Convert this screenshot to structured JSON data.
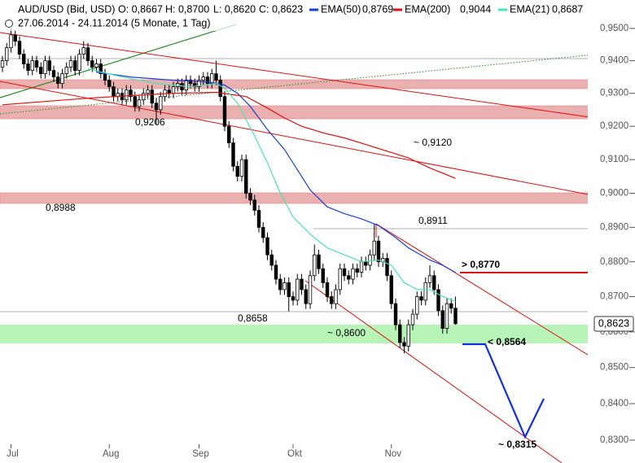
{
  "header": {
    "symbol": "AUD/USD (Bid, USD)",
    "quote": [
      "O: 0,8667",
      "H: 0,8700",
      "L: 0,8620",
      "C: 0,8623"
    ],
    "range": "27.06.2014 - 24.11.2014 (5 Monate, 1 Tag)"
  },
  "chart_data": {
    "type": "candlestick",
    "log_scale": true,
    "grid": false,
    "up_color": "#ffffff",
    "down_color": "#000000",
    "categories": [
      null,
      null,
      "Jul",
      null,
      null,
      null,
      null,
      null,
      null,
      null,
      null,
      null,
      null,
      null,
      null,
      null,
      null,
      null,
      null,
      null,
      null,
      null,
      null,
      null,
      null,
      "Aug",
      null,
      null,
      null,
      null,
      null,
      null,
      null,
      null,
      null,
      null,
      null,
      null,
      null,
      null,
      null,
      null,
      null,
      null,
      null,
      null,
      "Sep",
      null,
      null,
      null,
      null,
      null,
      null,
      null,
      null,
      null,
      null,
      null,
      null,
      null,
      null,
      null,
      null,
      null,
      null,
      null,
      null,
      null,
      "Okt",
      null,
      null,
      null,
      null,
      null,
      null,
      null,
      null,
      null,
      null,
      null,
      null,
      null,
      null,
      null,
      null,
      null,
      null,
      null,
      null,
      null,
      null,
      "Nov",
      null,
      null,
      null,
      null,
      null,
      null,
      null,
      null,
      null,
      null,
      null,
      null,
      null,
      null,
      null
    ],
    "open": [
      0.938,
      0.94,
      0.944,
      0.948,
      0.946,
      0.942,
      0.939,
      0.937,
      0.94,
      0.938,
      0.936,
      0.94,
      0.937,
      0.935,
      0.933,
      0.936,
      0.938,
      0.94,
      0.937,
      0.942,
      0.944,
      0.94,
      0.938,
      0.939,
      0.936,
      0.934,
      0.932,
      0.929,
      0.93,
      0.928,
      0.931,
      0.929,
      0.926,
      0.928,
      0.93,
      0.931,
      0.927,
      0.925,
      0.929,
      0.931,
      0.93,
      0.932,
      0.933,
      0.931,
      0.934,
      0.933,
      0.932,
      0.934,
      0.935,
      0.933,
      0.936,
      0.934,
      0.929,
      0.92,
      0.915,
      0.908,
      0.905,
      0.91,
      0.9,
      0.898,
      0.895,
      0.89,
      0.887,
      0.882,
      0.879,
      0.875,
      0.872,
      0.874,
      0.87,
      0.869,
      0.875,
      0.872,
      0.868,
      0.876,
      0.882,
      0.878,
      0.874,
      0.87,
      0.868,
      0.872,
      0.878,
      0.876,
      0.875,
      0.878,
      0.877,
      0.88,
      0.879,
      0.882,
      0.886,
      0.88,
      0.881,
      0.876,
      0.868,
      0.862,
      0.857,
      0.856,
      0.862,
      0.865,
      0.87,
      0.869,
      0.874,
      0.876,
      0.872,
      0.866,
      0.861,
      0.868,
      0.8667
    ],
    "high": [
      0.9415,
      0.9455,
      0.95,
      0.9495,
      0.9475,
      0.9435,
      0.9405,
      0.9415,
      0.9415,
      0.9395,
      0.9415,
      0.9415,
      0.9385,
      0.9365,
      0.9375,
      0.9395,
      0.9415,
      0.9415,
      0.9435,
      0.946,
      0.9455,
      0.9415,
      0.9405,
      0.9405,
      0.9375,
      0.9355,
      0.9335,
      0.9315,
      0.9315,
      0.9325,
      0.9325,
      0.9305,
      0.9295,
      0.9315,
      0.9325,
      0.9325,
      0.9285,
      0.9305,
      0.9325,
      0.9325,
      0.9335,
      0.9345,
      0.9345,
      0.9355,
      0.9355,
      0.9345,
      0.9355,
      0.9365,
      0.9365,
      0.9375,
      0.94,
      0.9355,
      0.9305,
      0.9215,
      0.9165,
      0.9095,
      0.9115,
      0.9115,
      0.9015,
      0.8995,
      0.8965,
      0.8915,
      0.8885,
      0.8835,
      0.8805,
      0.8765,
      0.8755,
      0.8755,
      0.8715,
      0.8765,
      0.8765,
      0.8735,
      0.8775,
      0.885,
      0.8835,
      0.8795,
      0.8755,
      0.8715,
      0.8735,
      0.8795,
      0.8795,
      0.8775,
      0.8795,
      0.8795,
      0.8815,
      0.8815,
      0.8835,
      0.8911,
      0.8875,
      0.8825,
      0.8825,
      0.8775,
      0.8695,
      0.8635,
      0.8585,
      0.8635,
      0.8665,
      0.8715,
      0.8715,
      0.8755,
      0.879,
      0.8775,
      0.8735,
      0.8675,
      0.8695,
      0.8695,
      0.87
    ],
    "low": [
      0.9365,
      0.9385,
      0.9425,
      0.9445,
      0.9405,
      0.9375,
      0.9355,
      0.9355,
      0.9365,
      0.9345,
      0.9345,
      0.9355,
      0.9335,
      0.9315,
      0.9315,
      0.9345,
      0.9365,
      0.9355,
      0.9355,
      0.9405,
      0.9385,
      0.9365,
      0.9365,
      0.9345,
      0.9325,
      0.9305,
      0.9275,
      0.9275,
      0.9265,
      0.9265,
      0.9275,
      0.9245,
      0.9245,
      0.9265,
      0.9285,
      0.9255,
      0.9206,
      0.9235,
      0.9275,
      0.9285,
      0.9285,
      0.9305,
      0.9295,
      0.9295,
      0.9315,
      0.9305,
      0.9305,
      0.9325,
      0.9315,
      0.9315,
      0.9325,
      0.9275,
      0.9185,
      0.9135,
      0.9065,
      0.9035,
      0.9035,
      0.8985,
      0.8965,
      0.8935,
      0.8885,
      0.8855,
      0.8805,
      0.8775,
      0.8735,
      0.8705,
      0.8705,
      0.8658,
      0.8675,
      0.8675,
      0.8705,
      0.8665,
      0.8665,
      0.8745,
      0.8765,
      0.8725,
      0.8685,
      0.8665,
      0.8665,
      0.8705,
      0.8745,
      0.8735,
      0.8735,
      0.8755,
      0.8755,
      0.8775,
      0.8775,
      0.8805,
      0.8785,
      0.8785,
      0.8745,
      0.8665,
      0.8605,
      0.8555,
      0.854,
      0.8545,
      0.8605,
      0.8635,
      0.8675,
      0.8675,
      0.8725,
      0.8705,
      0.8645,
      0.8595,
      0.8595,
      0.8652,
      0.862
    ],
    "close": [
      0.94,
      0.944,
      0.948,
      0.946,
      0.942,
      0.939,
      0.937,
      0.94,
      0.938,
      0.936,
      0.94,
      0.937,
      0.935,
      0.933,
      0.936,
      0.938,
      0.94,
      0.937,
      0.942,
      0.944,
      0.94,
      0.938,
      0.939,
      0.936,
      0.934,
      0.932,
      0.929,
      0.93,
      0.928,
      0.931,
      0.929,
      0.926,
      0.928,
      0.93,
      0.931,
      0.927,
      0.925,
      0.929,
      0.931,
      0.93,
      0.932,
      0.933,
      0.931,
      0.934,
      0.933,
      0.932,
      0.934,
      0.935,
      0.933,
      0.936,
      0.934,
      0.929,
      0.92,
      0.915,
      0.908,
      0.905,
      0.91,
      0.9,
      0.898,
      0.895,
      0.89,
      0.887,
      0.882,
      0.879,
      0.875,
      0.872,
      0.874,
      0.87,
      0.869,
      0.875,
      0.872,
      0.868,
      0.876,
      0.882,
      0.878,
      0.874,
      0.87,
      0.868,
      0.872,
      0.878,
      0.876,
      0.875,
      0.878,
      0.877,
      0.88,
      0.879,
      0.882,
      0.886,
      0.88,
      0.881,
      0.876,
      0.868,
      0.862,
      0.857,
      0.856,
      0.862,
      0.865,
      0.87,
      0.869,
      0.874,
      0.876,
      0.872,
      0.866,
      0.861,
      0.868,
      0.8667,
      0.8623
    ],
    "series": [
      {
        "name": "EMA(50)",
        "color": "#1a3fd6",
        "value_label": "0,8769",
        "x": [
          22,
          30,
          40,
          48,
          52,
          55,
          58,
          62,
          66,
          70,
          72,
          76,
          80,
          84,
          88,
          92,
          95,
          100,
          103,
          106
        ],
        "values": [
          0.9365,
          0.935,
          0.934,
          0.9335,
          0.9325,
          0.93,
          0.926,
          0.919,
          0.913,
          0.905,
          0.901,
          0.896,
          0.894,
          0.8925,
          0.8905,
          0.887,
          0.884,
          0.8805,
          0.879,
          0.8769
        ]
      },
      {
        "name": "EMA(200)",
        "color": "#e01010",
        "value_label": "0,9044",
        "x": [
          0,
          10,
          20,
          30,
          40,
          50,
          57,
          62,
          66,
          70,
          75,
          80,
          85,
          90,
          95,
          100,
          106
        ],
        "values": [
          0.9265,
          0.9275,
          0.9285,
          0.9293,
          0.93,
          0.9303,
          0.929,
          0.9255,
          0.9225,
          0.92,
          0.918,
          0.9165,
          0.9145,
          0.9125,
          0.9105,
          0.9075,
          0.9044
        ]
      },
      {
        "name": "EMA(21)",
        "color": "#4fe0b8",
        "value_label": "0,8687",
        "x": [
          20,
          28,
          36,
          44,
          50,
          52,
          55,
          59,
          62,
          65,
          68,
          72,
          76,
          80,
          84,
          88,
          91,
          94,
          97,
          100,
          103,
          106
        ],
        "values": [
          0.9375,
          0.935,
          0.933,
          0.932,
          0.933,
          0.9315,
          0.927,
          0.917,
          0.909,
          0.9,
          0.893,
          0.888,
          0.884,
          0.882,
          0.88,
          0.8805,
          0.879,
          0.874,
          0.872,
          0.872,
          0.87,
          0.8687
        ]
      }
    ],
    "ylim": [
      0.8238,
      0.9589
    ],
    "yticks": [
      {
        "value": 0.95,
        "label": "0,9500"
      },
      {
        "value": 0.94,
        "label": "0,9400"
      },
      {
        "value": 0.93,
        "label": "0,9300"
      },
      {
        "value": 0.92,
        "label": "0,9200"
      },
      {
        "value": 0.91,
        "label": "0,9100"
      },
      {
        "value": 0.9,
        "label": "0,9000"
      },
      {
        "value": 0.89,
        "label": "0,8900"
      },
      {
        "value": 0.88,
        "label": "0,8800"
      },
      {
        "value": 0.87,
        "label": "0,8700"
      },
      {
        "value": 0.86,
        "label": "0,8600"
      },
      {
        "value": 0.85,
        "label": "0,8500"
      },
      {
        "value": 0.84,
        "label": "0,8400"
      },
      {
        "value": 0.83,
        "label": "0,8300"
      }
    ],
    "annotations": [
      "0,9206",
      "~ 0,9120",
      "0,8988",
      "0,8911",
      "0,8658",
      "~ 0,8600",
      "> 0,8770",
      "< 0,8564",
      "~ 0,8315"
    ],
    "last_price_label": "0,8623"
  }
}
